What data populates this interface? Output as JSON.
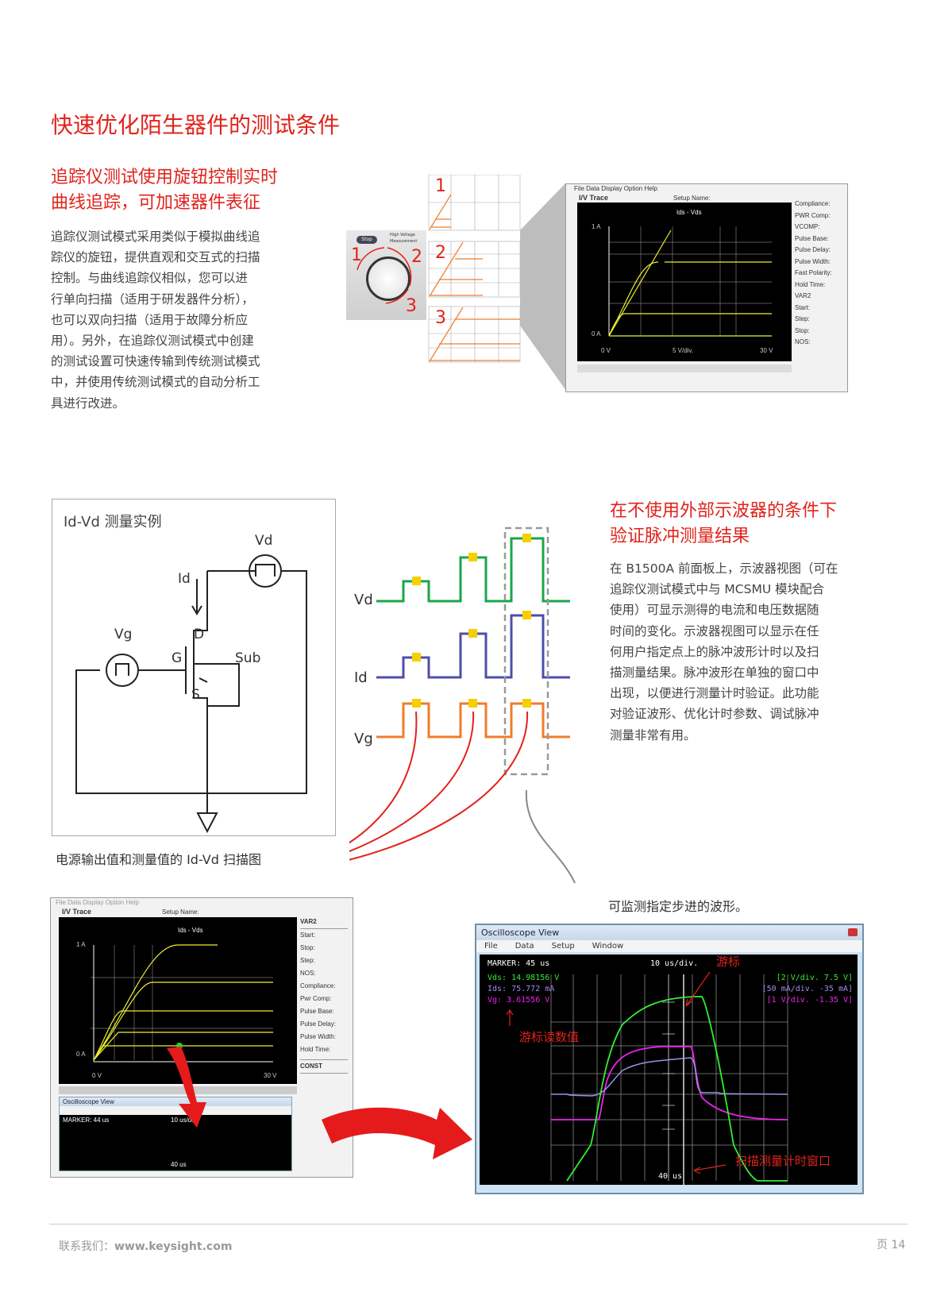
{
  "title": "快速优化陌生器件的测试条件",
  "section1": {
    "heading": [
      "追踪仪测试使用旋钮控制实时",
      "曲线追踪，可加速器件表征"
    ],
    "paragraph": [
      "追踪仪测试模式采用类似于模拟曲线追",
      "踪仪的旋钮，提供直观和交互式的扫描",
      "控制。与曲线追踪仪相似，您可以进",
      "行单向扫描（适用于研发器件分析），",
      "也可以双向扫描（适用于故障分析应",
      "用）。另外，在追踪仪测试模式中创建",
      "的测试设置可快速传输到传统测试模式",
      "中，并使用传统测试模式的自动分析工",
      "具进行改进。"
    ],
    "knob": {
      "button": "Stop",
      "led1": "High Voltage",
      "led2": "Measurement",
      "steps": [
        "1",
        "2",
        "3"
      ]
    },
    "graph_labels": [
      "1",
      "2",
      "3"
    ],
    "iv_trace": {
      "menu": "File  Data Display  Option  Help",
      "title": "I/V Trace",
      "setup_label": "Setup Name:",
      "plot_title": "Ids - Vds",
      "x_start": "0 V",
      "x_mid": "5 V/div.",
      "x_end": "30 V",
      "y_top": "1 A",
      "y_bottom": "0 A",
      "side": [
        "Compliance:",
        "PWR Comp:",
        "VCOMP:",
        "Pulse Base:",
        "Pulse Delay:",
        "Pulse Width:",
        "Fast Polarity:",
        "Hold Time:",
        "VAR2",
        "Start:",
        "Step:",
        "Stop:",
        "NOS:"
      ]
    }
  },
  "circuit": {
    "title": "Id-Vd 测量实例",
    "vd": "Vd",
    "vg": "Vg",
    "id": "Id",
    "d": "D",
    "g": "G",
    "s": "S",
    "sub": "Sub"
  },
  "waveforms": {
    "labels": [
      "Vd",
      "Id",
      "Vg"
    ],
    "colors": {
      "Vd": "#1aa64a",
      "Id": "#4e4ea8",
      "Vg": "#f07c2a",
      "marker": "#f5d000"
    }
  },
  "caption_left": "电源输出值和测量值的 Id-Vd 扫描图",
  "section2": {
    "heading": [
      "在不使用外部示波器的条件下",
      "验证脉冲测量结果"
    ],
    "paragraph": [
      "在 B1500A 前面板上，示波器视图（可在",
      "追踪仪测试模式中与 MCSMU 模块配合",
      "使用）可显示测得的电流和电压数据随",
      "时间的变化。示波器视图可以显示在任",
      "何用户指定点上的脉冲波形计时以及扫",
      "描测量结果。脉冲波形在单独的窗口中",
      "出现，以便进行测量计时验证。此功能",
      "对验证波形、优化计时参数、调试脉冲",
      "测量非常有用。"
    ]
  },
  "caption_right": "可监测指定步进的波形。",
  "small_shot": {
    "menu": "File  Data Display  Option  Help",
    "title": "I/V Trace",
    "setup_label": "Setup Name:",
    "plot_title": "Ids - Vds",
    "x_start": "0 V",
    "x_end": "30 V",
    "y_top": "1 A",
    "y_bottom": "0 A",
    "var2": "VAR2",
    "const": "CONST",
    "side": [
      "Start:",
      "Stop:",
      "Step:",
      "NOS:",
      "Compliance:",
      "Pwr Comp:",
      "Pulse Base:",
      "Pulse Delay:",
      "Pulse Width:",
      "Hold Time:"
    ],
    "osc_title": "Oscilloscope View",
    "osc_marker": "MARKER: 44 us",
    "osc_div": "10 us/div.",
    "osc_time": "40 us"
  },
  "oscilloscope": {
    "title": "Oscilloscope View",
    "menu": [
      "File",
      "Data",
      "Setup",
      "Window"
    ],
    "marker": "MARKER: 45 us",
    "timebase": "10 us/div.",
    "vds": "Vds: 14.98156 V",
    "ids": "Ids: 75.772 mA",
    "vg": "Vg: 3.61556 V",
    "scale_vds": "[2 V/div.  7.5 V]",
    "scale_ids": "[50 mA/div. -35 mA]",
    "scale_vg": "[1 V/div. -1.35 V]",
    "time_label": "40 us",
    "annotations": {
      "cursor": "游标",
      "cursor_readout": "游标读数值",
      "window": "扫描测量计时窗口"
    },
    "colors": {
      "vds": "#33ee33",
      "ids": "#9f8fe8",
      "vg": "#ee22ee"
    }
  },
  "footer": {
    "contact": "联系我们：",
    "url": "www.keysight.com",
    "page": "页 14"
  }
}
